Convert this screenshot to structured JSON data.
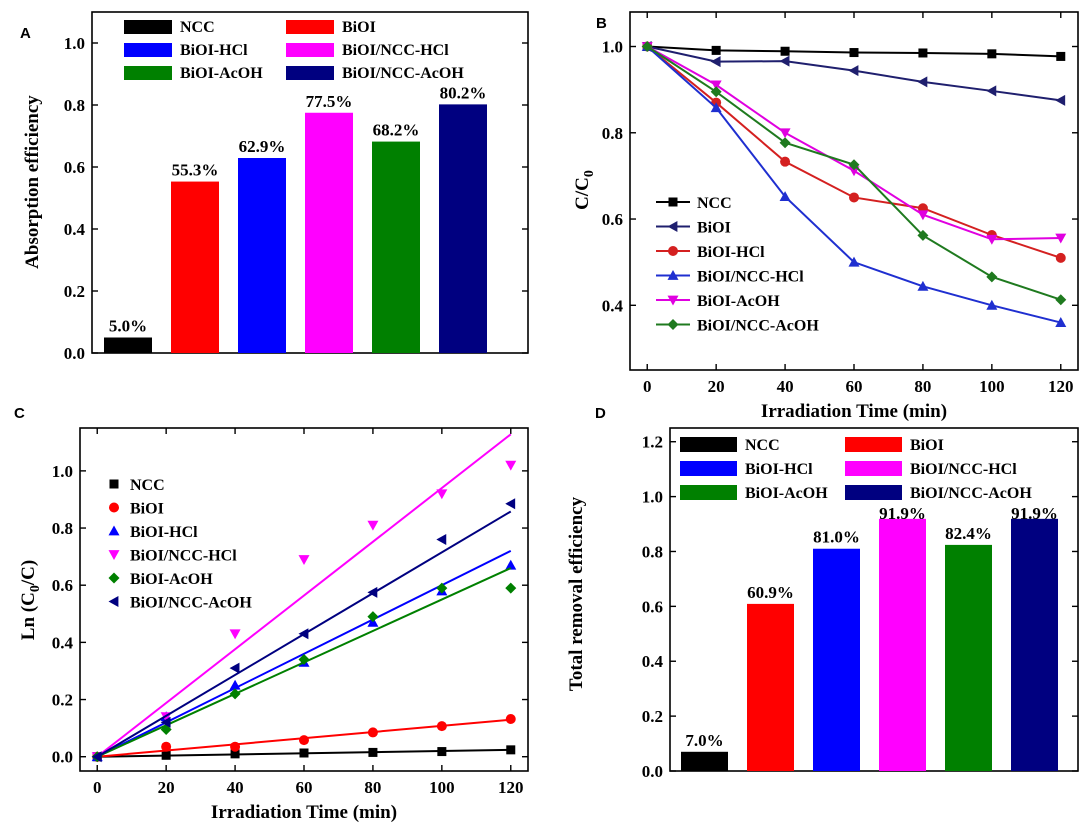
{
  "colors": {
    "NCC": "#000000",
    "BiOI": "#ff0000",
    "BiOI-HCl": "#0000ff",
    "BiOI/NCC-HCl": "#ff00ff",
    "BiOI-AcOH": "#008000",
    "BiOI/NCC-AcOH": "#000080"
  },
  "line_colors": {
    "NCC": "#000000",
    "BiOI": "#1f1f6e",
    "BiOI-HCl": "#d42020",
    "BiOI/NCC-HCl": "#1f2fd0",
    "BiOI-AcOH": "#e000e0",
    "BiOI/NCC-AcOH": "#1f7a1f"
  },
  "chart_data": [
    {
      "id": "A",
      "panel_label": "A",
      "type": "bar",
      "title": "",
      "xlabel": "",
      "ylabel": "Absorption efficiency",
      "ylim": [
        0,
        1.1
      ],
      "yticks": [
        "0.0",
        "0.2",
        "0.4",
        "0.6",
        "0.8",
        "1.0"
      ],
      "categories": [
        "NCC",
        "BiOI",
        "BiOI-HCl",
        "BiOI/NCC-HCl",
        "BiOI-AcOH",
        "BiOI/NCC-AcOH"
      ],
      "values": [
        0.05,
        0.553,
        0.629,
        0.775,
        0.682,
        0.802
      ],
      "data_labels": [
        "5.0%",
        "55.3%",
        "62.9%",
        "77.5%",
        "68.2%",
        "80.2%"
      ],
      "legend": [
        "NCC",
        "BiOI",
        "BiOI-HCl",
        "BiOI/NCC-HCl",
        "BiOI-AcOH",
        "BiOI/NCC-AcOH"
      ],
      "legend_position": "top"
    },
    {
      "id": "B",
      "panel_label": "B",
      "type": "line",
      "title": "",
      "xlabel": "Irradiation Time (min)",
      "ylabel": "C/C0",
      "ylabel_main": "C/C",
      "ylabel_sub": "0",
      "xlim": [
        -5,
        125
      ],
      "ylim": [
        0.25,
        1.08
      ],
      "xticks": [
        "0",
        "20",
        "40",
        "60",
        "80",
        "100",
        "120"
      ],
      "yticks": [
        "0.4",
        "0.6",
        "0.8",
        "1.0"
      ],
      "x": [
        0,
        20,
        40,
        60,
        80,
        100,
        120
      ],
      "series": [
        {
          "name": "NCC",
          "marker": "square",
          "values": [
            1.0,
            0.991,
            0.989,
            0.986,
            0.985,
            0.983,
            0.977
          ]
        },
        {
          "name": "BiOI",
          "marker": "tri-left",
          "values": [
            1.0,
            0.965,
            0.966,
            0.944,
            0.918,
            0.897,
            0.875
          ]
        },
        {
          "name": "BiOI-HCl",
          "marker": "circle",
          "values": [
            1.0,
            0.87,
            0.733,
            0.65,
            0.625,
            0.563,
            0.51
          ]
        },
        {
          "name": "BiOI/NCC-HCl",
          "marker": "tri-up",
          "values": [
            1.0,
            0.858,
            0.652,
            0.5,
            0.444,
            0.4,
            0.36
          ]
        },
        {
          "name": "BiOI-AcOH",
          "marker": "tri-down",
          "values": [
            1.0,
            0.911,
            0.8,
            0.712,
            0.61,
            0.553,
            0.556
          ]
        },
        {
          "name": "BiOI/NCC-AcOH",
          "marker": "diamond",
          "values": [
            1.0,
            0.895,
            0.777,
            0.726,
            0.562,
            0.466,
            0.413
          ]
        }
      ],
      "legend_position": "lower-left"
    },
    {
      "id": "C",
      "panel_label": "C",
      "type": "scatter",
      "title": "",
      "xlabel": "Irradiation Time (min)",
      "ylabel": "Ln (C0/C)",
      "ylabel_main": "Ln (C",
      "ylabel_sub": "0",
      "ylabel_tail": "/C)",
      "xlim": [
        -5,
        125
      ],
      "ylim": [
        -0.05,
        1.15
      ],
      "xticks": [
        "0",
        "20",
        "40",
        "60",
        "80",
        "100",
        "120"
      ],
      "yticks": [
        "0.0",
        "0.2",
        "0.4",
        "0.6",
        "0.8",
        "1.0"
      ],
      "x": [
        0,
        20,
        40,
        60,
        80,
        100,
        120
      ],
      "series": [
        {
          "name": "NCC",
          "color_key": "NCC",
          "marker": "square",
          "values": [
            0.0,
            0.005,
            0.01,
            0.013,
            0.015,
            0.018,
            0.024
          ],
          "fit_slope": 0.0002
        },
        {
          "name": "BiOI",
          "color_key": "BiOI",
          "marker": "circle",
          "values": [
            0.0,
            0.035,
            0.035,
            0.058,
            0.085,
            0.107,
            0.132
          ],
          "fit_slope": 0.00108
        },
        {
          "name": "BiOI-HCl",
          "color_key": "BiOI-HCl",
          "marker": "tri-up",
          "values": [
            0.0,
            0.14,
            0.25,
            0.33,
            0.47,
            0.58,
            0.67
          ],
          "fit_slope": 0.006
        },
        {
          "name": "BiOI/NCC-HCl",
          "color_key": "BiOI/NCC-HCl",
          "marker": "tri-down",
          "values": [
            0.0,
            0.14,
            0.43,
            0.69,
            0.81,
            0.92,
            1.02
          ],
          "fit_slope": 0.0094
        },
        {
          "name": "BiOI-AcOH",
          "color_key": "BiOI-AcOH",
          "marker": "diamond",
          "values": [
            0.0,
            0.095,
            0.22,
            0.34,
            0.49,
            0.59,
            0.59
          ],
          "fit_slope": 0.0055
        },
        {
          "name": "BiOI/NCC-AcOH",
          "color_key": "BiOI/NCC-AcOH",
          "marker": "tri-left",
          "values": [
            0.0,
            0.12,
            0.31,
            0.43,
            0.575,
            0.76,
            0.885
          ],
          "fit_slope": 0.00715
        }
      ],
      "legend_position": "left"
    },
    {
      "id": "D",
      "panel_label": "D",
      "type": "bar",
      "title": "",
      "xlabel": "",
      "ylabel": "Total removal  efficiency",
      "ylim": [
        0,
        1.25
      ],
      "yticks": [
        "0.0",
        "0.2",
        "0.4",
        "0.6",
        "0.8",
        "1.0",
        "1.2"
      ],
      "categories": [
        "NCC",
        "BiOI",
        "BiOI-HCl",
        "BiOI/NCC-HCl",
        "BiOI-AcOH",
        "BiOI/NCC-AcOH"
      ],
      "values": [
        0.07,
        0.609,
        0.81,
        0.919,
        0.824,
        0.919
      ],
      "data_labels": [
        "7.0%",
        "60.9%",
        "81.0%",
        "91.9%",
        "82.4%",
        "91.9%"
      ],
      "legend": [
        "NCC",
        "BiOI",
        "BiOI-HCl",
        "BiOI/NCC-HCl",
        "BiOI-AcOH",
        "BiOI/NCC-AcOH"
      ],
      "legend_position": "top"
    }
  ]
}
